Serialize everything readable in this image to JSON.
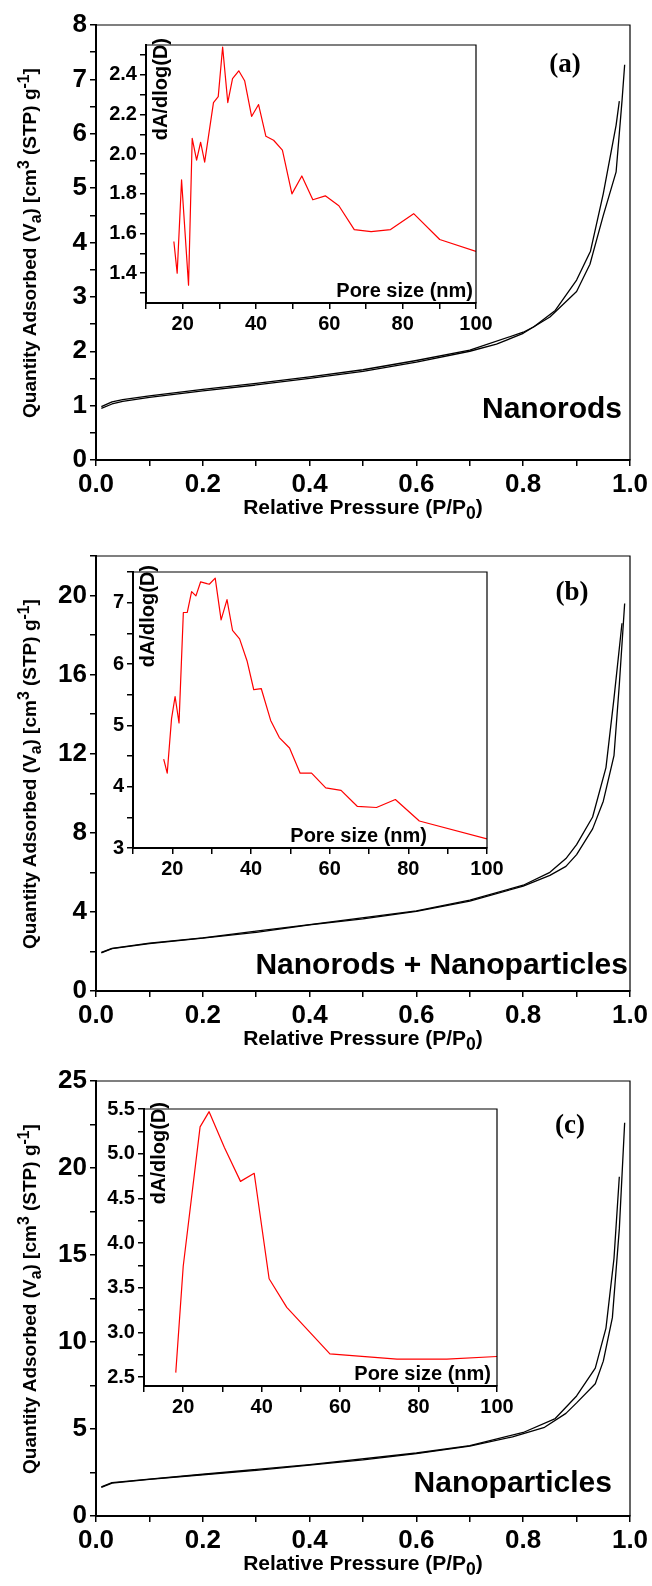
{
  "chart_data": [
    {
      "type": "line",
      "xlabel": "Relative Pressure (P/P$_{0}$)",
      "ylabel": "Quantity Adsorbed (V$_{a}$) [cm$^{3}$ (STP) g$^{-1}$]",
      "annotations": [
        "(a)",
        "Nanorods"
      ],
      "xlim": [
        0,
        1
      ],
      "ylim": [
        0,
        8
      ],
      "xticks": [
        {
          "value": 0,
          "label": "0.0"
        },
        {
          "value": 0.1,
          "label": null
        },
        0.2,
        {
          "value": 0.3,
          "label": null
        },
        0.4,
        {
          "value": 0.5,
          "label": null
        },
        0.6,
        {
          "value": 0.7,
          "label": null
        },
        0.8,
        {
          "value": 0.9,
          "label": null
        },
        {
          "value": 1,
          "label": "1.0"
        }
      ],
      "yticks": [
        0,
        {
          "value": 0.5,
          "label": null
        },
        1,
        {
          "value": 1.5,
          "label": null
        },
        2,
        {
          "value": 2.5,
          "label": null
        },
        3,
        {
          "value": 3.5,
          "label": null
        },
        4,
        {
          "value": 4.5,
          "label": null
        },
        5,
        {
          "value": 5.5,
          "label": null
        },
        6,
        {
          "value": 6.5,
          "label": null
        },
        7,
        {
          "value": 7.5,
          "label": null
        },
        8
      ],
      "series": [
        {
          "color": "#000000",
          "x": [
            0.01,
            0.03,
            0.05,
            0.1,
            0.2,
            0.3,
            0.4,
            0.5,
            0.6,
            0.7,
            0.75,
            0.8,
            0.85,
            0.9,
            0.925,
            0.95,
            0.974,
            0.985,
            0.99
          ],
          "values": [
            0.95,
            1.03,
            1.08,
            1.15,
            1.27,
            1.38,
            1.5,
            1.63,
            1.8,
            2.0,
            2.13,
            2.33,
            2.63,
            3.1,
            3.6,
            4.5,
            5.3,
            6.6,
            7.27
          ]
        },
        {
          "color": "#000000",
          "x": [
            0.98,
            0.974,
            0.95,
            0.926,
            0.9,
            0.86,
            0.82,
            0.8,
            0.7,
            0.6,
            0.5,
            0.4,
            0.3,
            0.2,
            0.1,
            0.05,
            0.03,
            0.01
          ],
          "values": [
            6.6,
            6.16,
            4.9,
            3.84,
            3.31,
            2.75,
            2.45,
            2.35,
            2.02,
            1.83,
            1.66,
            1.53,
            1.41,
            1.3,
            1.18,
            1.11,
            1.07,
            0.98
          ]
        }
      ]
    },
    {
      "type": "line",
      "xlabel": "Pore size (nm)",
      "ylabel": "dA/dlog(D)",
      "xlim": [
        10,
        100
      ],
      "ylim": [
        1.25,
        2.55
      ],
      "xticks": [
        {
          "value": 10,
          "label": null
        },
        20,
        {
          "value": 30,
          "label": null
        },
        40,
        {
          "value": 50,
          "label": null
        },
        60,
        {
          "value": 70,
          "label": null
        },
        80,
        {
          "value": 90,
          "label": null
        },
        100
      ],
      "yticks": [
        {
          "value": 1.3,
          "label": null
        },
        1.4,
        {
          "value": 1.5,
          "label": null
        },
        1.6,
        {
          "value": 1.7,
          "label": null
        },
        1.8,
        {
          "value": 1.9,
          "label": null
        },
        {
          "value": 2,
          "label": "2.0"
        },
        {
          "value": 2.1,
          "label": null
        },
        2.2,
        {
          "value": 2.3,
          "label": null
        },
        2.4,
        {
          "value": 2.5,
          "label": null
        }
      ],
      "series": [
        {
          "color": "#ff0000",
          "x": [
            17.6,
            18.5,
            19.7,
            21.6,
            22.6,
            23.8,
            24.9,
            26.0,
            28.4,
            29.7,
            30.9,
            32.3,
            33.6,
            35.3,
            36.9,
            38.8,
            40.7,
            42.7,
            44.8,
            47.2,
            49.8,
            52.5,
            55.5,
            58.9,
            62.6,
            66.8,
            71.4,
            76.7,
            83.0,
            90.1,
            100
          ],
          "values": [
            1.56,
            1.4,
            1.87,
            1.34,
            2.08,
            1.97,
            2.06,
            1.96,
            2.26,
            2.29,
            2.54,
            2.26,
            2.38,
            2.42,
            2.37,
            2.19,
            2.25,
            2.09,
            2.07,
            2.02,
            1.8,
            1.89,
            1.77,
            1.79,
            1.74,
            1.62,
            1.61,
            1.62,
            1.7,
            1.57,
            1.51
          ]
        }
      ]
    },
    {
      "type": "line",
      "xlabel": "Relative Pressure (P/P$_{0}$)",
      "ylabel": "Quantity Adsorbed (V$_{a}$) [cm$^{3}$ (STP) g$^{-1}$]",
      "annotations": [
        "(b)",
        "Nanorods + Nanoparticles"
      ],
      "xlim": [
        0,
        1
      ],
      "ylim": [
        0,
        22
      ],
      "xticks": [
        {
          "value": 0,
          "label": "0.0"
        },
        {
          "value": 0.1,
          "label": null
        },
        0.2,
        {
          "value": 0.3,
          "label": null
        },
        0.4,
        {
          "value": 0.5,
          "label": null
        },
        0.6,
        {
          "value": 0.7,
          "label": null
        },
        0.8,
        {
          "value": 0.9,
          "label": null
        },
        {
          "value": 1,
          "label": "1.0"
        }
      ],
      "yticks": [
        0,
        {
          "value": 2,
          "label": null
        },
        4,
        {
          "value": 6,
          "label": null
        },
        8,
        {
          "value": 10,
          "label": null
        },
        12,
        {
          "value": 14,
          "label": null
        },
        16,
        {
          "value": 18,
          "label": null
        },
        20,
        {
          "value": 22,
          "label": null
        }
      ],
      "series": [
        {
          "color": "#000000",
          "x": [
            0.01,
            0.03,
            0.1,
            0.2,
            0.3,
            0.4,
            0.5,
            0.6,
            0.7,
            0.8,
            0.85,
            0.88,
            0.9,
            0.93,
            0.95,
            0.97,
            0.98,
            0.99
          ],
          "values": [
            1.93,
            2.14,
            2.4,
            2.67,
            2.97,
            3.34,
            3.65,
            4.03,
            4.55,
            5.3,
            5.85,
            6.3,
            6.9,
            8.2,
            9.6,
            11.9,
            15.5,
            19.6
          ]
        },
        {
          "color": "#000000",
          "x": [
            0.985,
            0.97,
            0.955,
            0.93,
            0.9,
            0.88,
            0.85,
            0.8,
            0.7,
            0.6,
            0.4,
            0.2,
            0.1,
            0.03,
            0.01
          ],
          "values": [
            18.6,
            14.8,
            11.3,
            8.8,
            7.4,
            6.7,
            6.0,
            5.35,
            4.6,
            4.05,
            3.36,
            2.69,
            2.42,
            2.16,
            1.95
          ]
        }
      ]
    },
    {
      "type": "line",
      "xlabel": "Pore size (nm)",
      "ylabel": "dA/dlog(D)",
      "xlim": [
        10,
        100
      ],
      "ylim": [
        3,
        7.5
      ],
      "xticks": [
        {
          "value": 10,
          "label": null
        },
        20,
        {
          "value": 30,
          "label": null
        },
        40,
        {
          "value": 50,
          "label": null
        },
        60,
        {
          "value": 70,
          "label": null
        },
        80,
        {
          "value": 90,
          "label": null
        },
        100
      ],
      "yticks": [
        3,
        {
          "value": 3.5,
          "label": null
        },
        4,
        {
          "value": 4.5,
          "label": null
        },
        5,
        {
          "value": 5.5,
          "label": null
        },
        6,
        {
          "value": 6.5,
          "label": null
        },
        7,
        {
          "value": 7.5,
          "label": null
        }
      ],
      "series": [
        {
          "color": "#ff0000",
          "x": [
            17.8,
            18.7,
            19.8,
            20.7,
            21.7,
            22.8,
            23.8,
            24.9,
            26.0,
            27.2,
            28.8,
            29.4,
            30.9,
            32.4,
            33.9,
            35.3,
            37.1,
            39.0,
            40.7,
            42.6,
            45.0,
            47.2,
            49.8,
            52.5,
            55.4,
            59.0,
            62.9,
            67.0,
            71.9,
            76.7,
            82.8,
            100
          ],
          "values": [
            4.45,
            4.22,
            5.11,
            5.47,
            5.04,
            6.84,
            6.84,
            7.18,
            7.11,
            7.34,
            7.31,
            7.3,
            7.4,
            6.72,
            7.05,
            6.55,
            6.41,
            6.05,
            5.58,
            5.6,
            5.08,
            4.8,
            4.63,
            4.22,
            4.22,
            3.98,
            3.94,
            3.68,
            3.66,
            3.79,
            3.44,
            3.15
          ]
        }
      ]
    },
    {
      "type": "line",
      "xlabel": "Relative Pressure (P/P$_{0}$)",
      "ylabel": "Quantity Adsorbed (V$_{a}$) [cm$^{3}$ (STP) g$^{-1}$]",
      "annotations": [
        "(c)",
        "Nanoparticles"
      ],
      "xlim": [
        0,
        1
      ],
      "ylim": [
        0,
        25
      ],
      "xticks": [
        {
          "value": 0,
          "label": "0.0"
        },
        {
          "value": 0.1,
          "label": null
        },
        0.2,
        {
          "value": 0.3,
          "label": null
        },
        0.4,
        {
          "value": 0.5,
          "label": null
        },
        0.6,
        {
          "value": 0.7,
          "label": null
        },
        0.8,
        {
          "value": 0.9,
          "label": null
        },
        {
          "value": 1,
          "label": "1.0"
        }
      ],
      "yticks": [
        0,
        {
          "value": 2.5,
          "label": null
        },
        5,
        {
          "value": 7.5,
          "label": null
        },
        10,
        {
          "value": 12.5,
          "label": null
        },
        15,
        {
          "value": 17.5,
          "label": null
        },
        20,
        {
          "value": 22.5,
          "label": null
        },
        25
      ],
      "series": [
        {
          "color": "#000000",
          "x": [
            0.01,
            0.03,
            0.1,
            0.2,
            0.3,
            0.4,
            0.5,
            0.6,
            0.7,
            0.78,
            0.84,
            0.88,
            0.9,
            0.935,
            0.95,
            0.967,
            0.98,
            0.99
          ],
          "values": [
            1.65,
            1.89,
            2.1,
            2.37,
            2.62,
            2.92,
            3.22,
            3.59,
            4.02,
            4.55,
            5.1,
            5.9,
            6.5,
            7.6,
            8.9,
            11.4,
            16.5,
            22.6
          ]
        },
        {
          "color": "#000000",
          "x": [
            0.98,
            0.97,
            0.955,
            0.935,
            0.9,
            0.86,
            0.8,
            0.7,
            0.6,
            0.4,
            0.2,
            0.1,
            0.03,
            0.01
          ],
          "values": [
            19.5,
            14.8,
            10.8,
            8.5,
            6.9,
            5.6,
            4.8,
            4.05,
            3.62,
            2.95,
            2.4,
            2.12,
            1.92,
            1.67
          ]
        }
      ]
    },
    {
      "type": "line",
      "xlabel": "Pore size (nm)",
      "ylabel": "dA/dlog(D)",
      "xlim": [
        10,
        100
      ],
      "ylim": [
        2.4,
        5.5
      ],
      "xticks": [
        {
          "value": 10,
          "label": null
        },
        20,
        {
          "value": 30,
          "label": null
        },
        40,
        {
          "value": 50,
          "label": null
        },
        60,
        {
          "value": 70,
          "label": null
        },
        80,
        {
          "value": 90,
          "label": null
        },
        100
      ],
      "yticks": [
        2.5,
        {
          "value": 2.75,
          "label": null
        },
        {
          "value": 3,
          "label": "3.0"
        },
        {
          "value": 3.25,
          "label": null
        },
        3.5,
        {
          "value": 3.75,
          "label": null
        },
        {
          "value": 4,
          "label": "4.0"
        },
        {
          "value": 4.25,
          "label": null
        },
        4.5,
        {
          "value": 4.75,
          "label": null
        },
        {
          "value": 5,
          "label": "5.0"
        },
        {
          "value": 5.25,
          "label": null
        },
        5.5
      ],
      "series": [
        {
          "color": "#ff0000",
          "x": [
            18.1,
            20,
            24.3,
            26.6,
            30.5,
            34.6,
            38.1,
            41.9,
            46.4,
            57.4,
            74.5,
            87.2,
            100
          ],
          "values": [
            2.55,
            3.74,
            5.3,
            5.47,
            5.07,
            4.69,
            4.78,
            3.6,
            3.28,
            2.76,
            2.7,
            2.7,
            2.73
          ]
        }
      ]
    }
  ]
}
